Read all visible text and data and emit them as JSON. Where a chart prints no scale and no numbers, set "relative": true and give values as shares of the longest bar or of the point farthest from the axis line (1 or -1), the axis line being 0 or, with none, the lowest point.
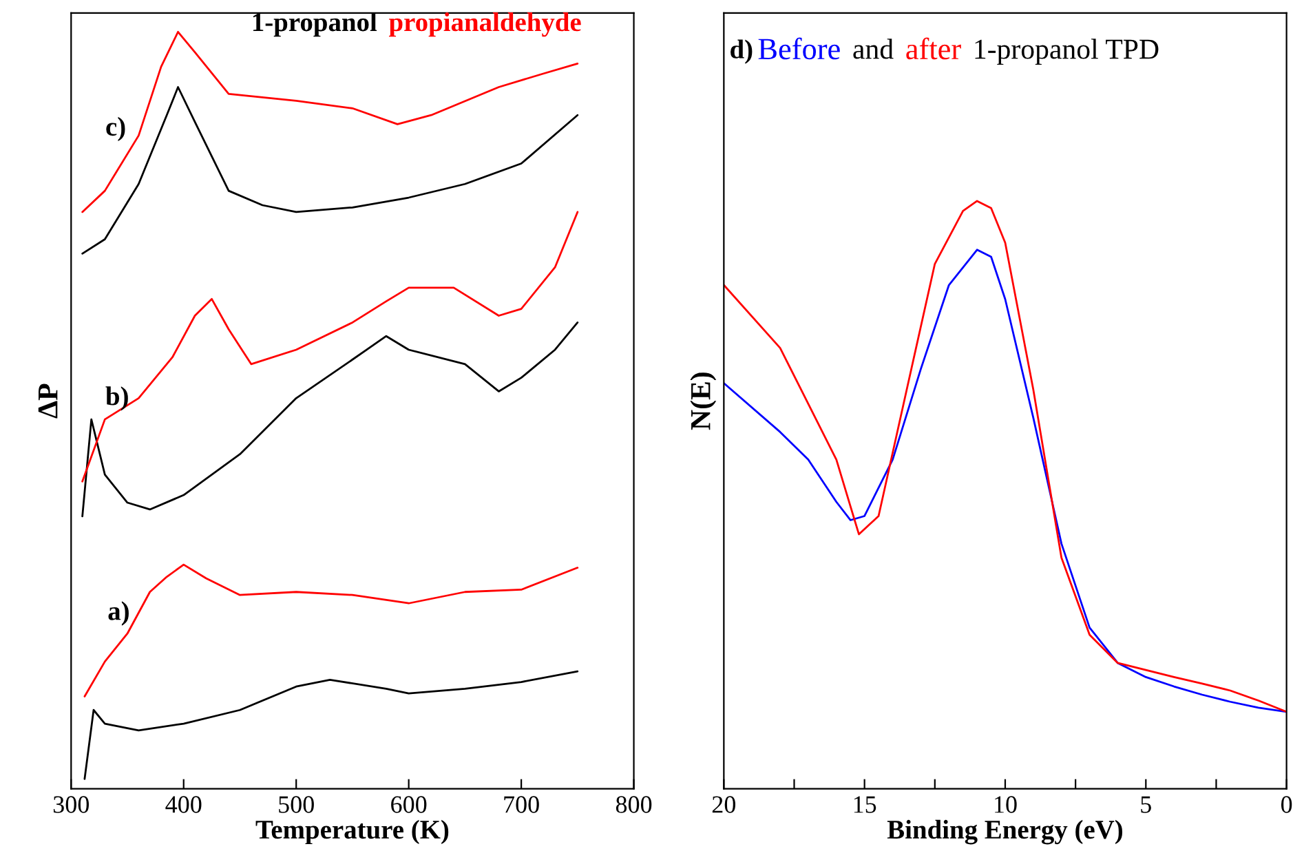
{
  "chart_data": [
    {
      "type": "line",
      "xlabel": "Temperature (K)",
      "ylabel": "ΔP",
      "relative": true,
      "xlim": [
        300,
        800
      ],
      "xticks": [
        300,
        400,
        500,
        600,
        700,
        800
      ],
      "tick_labels": "x",
      "grid": false,
      "legend": false,
      "annotations": [
        "a)",
        "b)",
        "c)"
      ],
      "series": [
        {
          "color": "#000000",
          "x": [
            312,
            320,
            330,
            360,
            400,
            450,
            500,
            530,
            580,
            600,
            650,
            700,
            750
          ],
          "values": [
            0.013,
            0.104,
            0.086,
            0.077,
            0.086,
            0.104,
            0.135,
            0.144,
            0.132,
            0.126,
            0.132,
            0.141,
            0.155
          ]
        },
        {
          "color": "#ff0000",
          "x": [
            312,
            330,
            350,
            370,
            385,
            400,
            420,
            450,
            500,
            550,
            600,
            650,
            700,
            750
          ],
          "values": [
            0.122,
            0.168,
            0.205,
            0.26,
            0.28,
            0.296,
            0.278,
            0.256,
            0.26,
            0.256,
            0.245,
            0.26,
            0.263,
            0.292
          ]
        },
        {
          "color": "#000000",
          "x": [
            310,
            318,
            330,
            350,
            370,
            400,
            450,
            500,
            550,
            580,
            600,
            650,
            680,
            700,
            730,
            750
          ],
          "values": [
            0.36,
            0.488,
            0.415,
            0.378,
            0.369,
            0.388,
            0.442,
            0.516,
            0.567,
            0.598,
            0.58,
            0.561,
            0.525,
            0.543,
            0.58,
            0.616
          ]
        },
        {
          "color": "#ff0000",
          "x": [
            310,
            330,
            360,
            390,
            410,
            425,
            440,
            460,
            500,
            550,
            580,
            600,
            640,
            680,
            700,
            730,
            750
          ],
          "values": [
            0.406,
            0.488,
            0.516,
            0.57,
            0.625,
            0.647,
            0.607,
            0.561,
            0.58,
            0.616,
            0.644,
            0.662,
            0.662,
            0.625,
            0.634,
            0.689,
            0.762
          ]
        },
        {
          "name": "1-propanol",
          "color": "#000000",
          "x": [
            310,
            330,
            360,
            385,
            395,
            410,
            440,
            470,
            500,
            550,
            600,
            650,
            700,
            750
          ],
          "values": [
            0.707,
            0.726,
            0.799,
            0.89,
            0.927,
            0.881,
            0.79,
            0.771,
            0.762,
            0.768,
            0.781,
            0.799,
            0.826,
            0.89
          ]
        },
        {
          "name": "propianaldehyde",
          "color": "#ff0000",
          "x": [
            310,
            330,
            360,
            380,
            395,
            410,
            440,
            500,
            550,
            590,
            620,
            680,
            720,
            750
          ],
          "values": [
            0.762,
            0.79,
            0.863,
            0.954,
            1.0,
            0.973,
            0.918,
            0.909,
            0.899,
            0.878,
            0.89,
            0.927,
            0.945,
            0.958
          ]
        }
      ]
    },
    {
      "type": "line",
      "xlabel": "Binding Energy (eV)",
      "ylabel": "N(E)",
      "relative": true,
      "xlim": [
        20,
        0
      ],
      "xticks": [
        20,
        {
          "value": 17.5,
          "label": null
        },
        15,
        {
          "value": 12.5,
          "label": null
        },
        10,
        {
          "value": 7.5,
          "label": null
        },
        5,
        {
          "value": 2.5,
          "label": null
        },
        0
      ],
      "tick_labels": "x",
      "grid": false,
      "legend": false,
      "annotations": [
        "d)",
        "and",
        "1-propanol TPD"
      ],
      "series": [
        {
          "name": "Before",
          "color": "#0000ff",
          "x": [
            20,
            18,
            17,
            16,
            15.5,
            15,
            14,
            13,
            12,
            11,
            10.5,
            10,
            9,
            8,
            7,
            6,
            5,
            4,
            3,
            2,
            1,
            0
          ],
          "values": [
            0.69,
            0.607,
            0.56,
            0.488,
            0.457,
            0.464,
            0.56,
            0.714,
            0.857,
            0.917,
            0.905,
            0.833,
            0.631,
            0.417,
            0.274,
            0.214,
            0.19,
            0.174,
            0.16,
            0.148,
            0.138,
            0.131
          ]
        },
        {
          "name": "after",
          "color": "#ff0000",
          "x": [
            20,
            18,
            16,
            15.2,
            14.5,
            13.5,
            12.5,
            11.5,
            11,
            10.5,
            10,
            9,
            8,
            7,
            6,
            5,
            4,
            3,
            2,
            1,
            0
          ],
          "values": [
            0.857,
            0.75,
            0.56,
            0.433,
            0.464,
            0.679,
            0.893,
            0.983,
            1.0,
            0.988,
            0.929,
            0.679,
            0.393,
            0.262,
            0.214,
            0.202,
            0.19,
            0.179,
            0.167,
            0.15,
            0.131
          ]
        }
      ]
    }
  ]
}
